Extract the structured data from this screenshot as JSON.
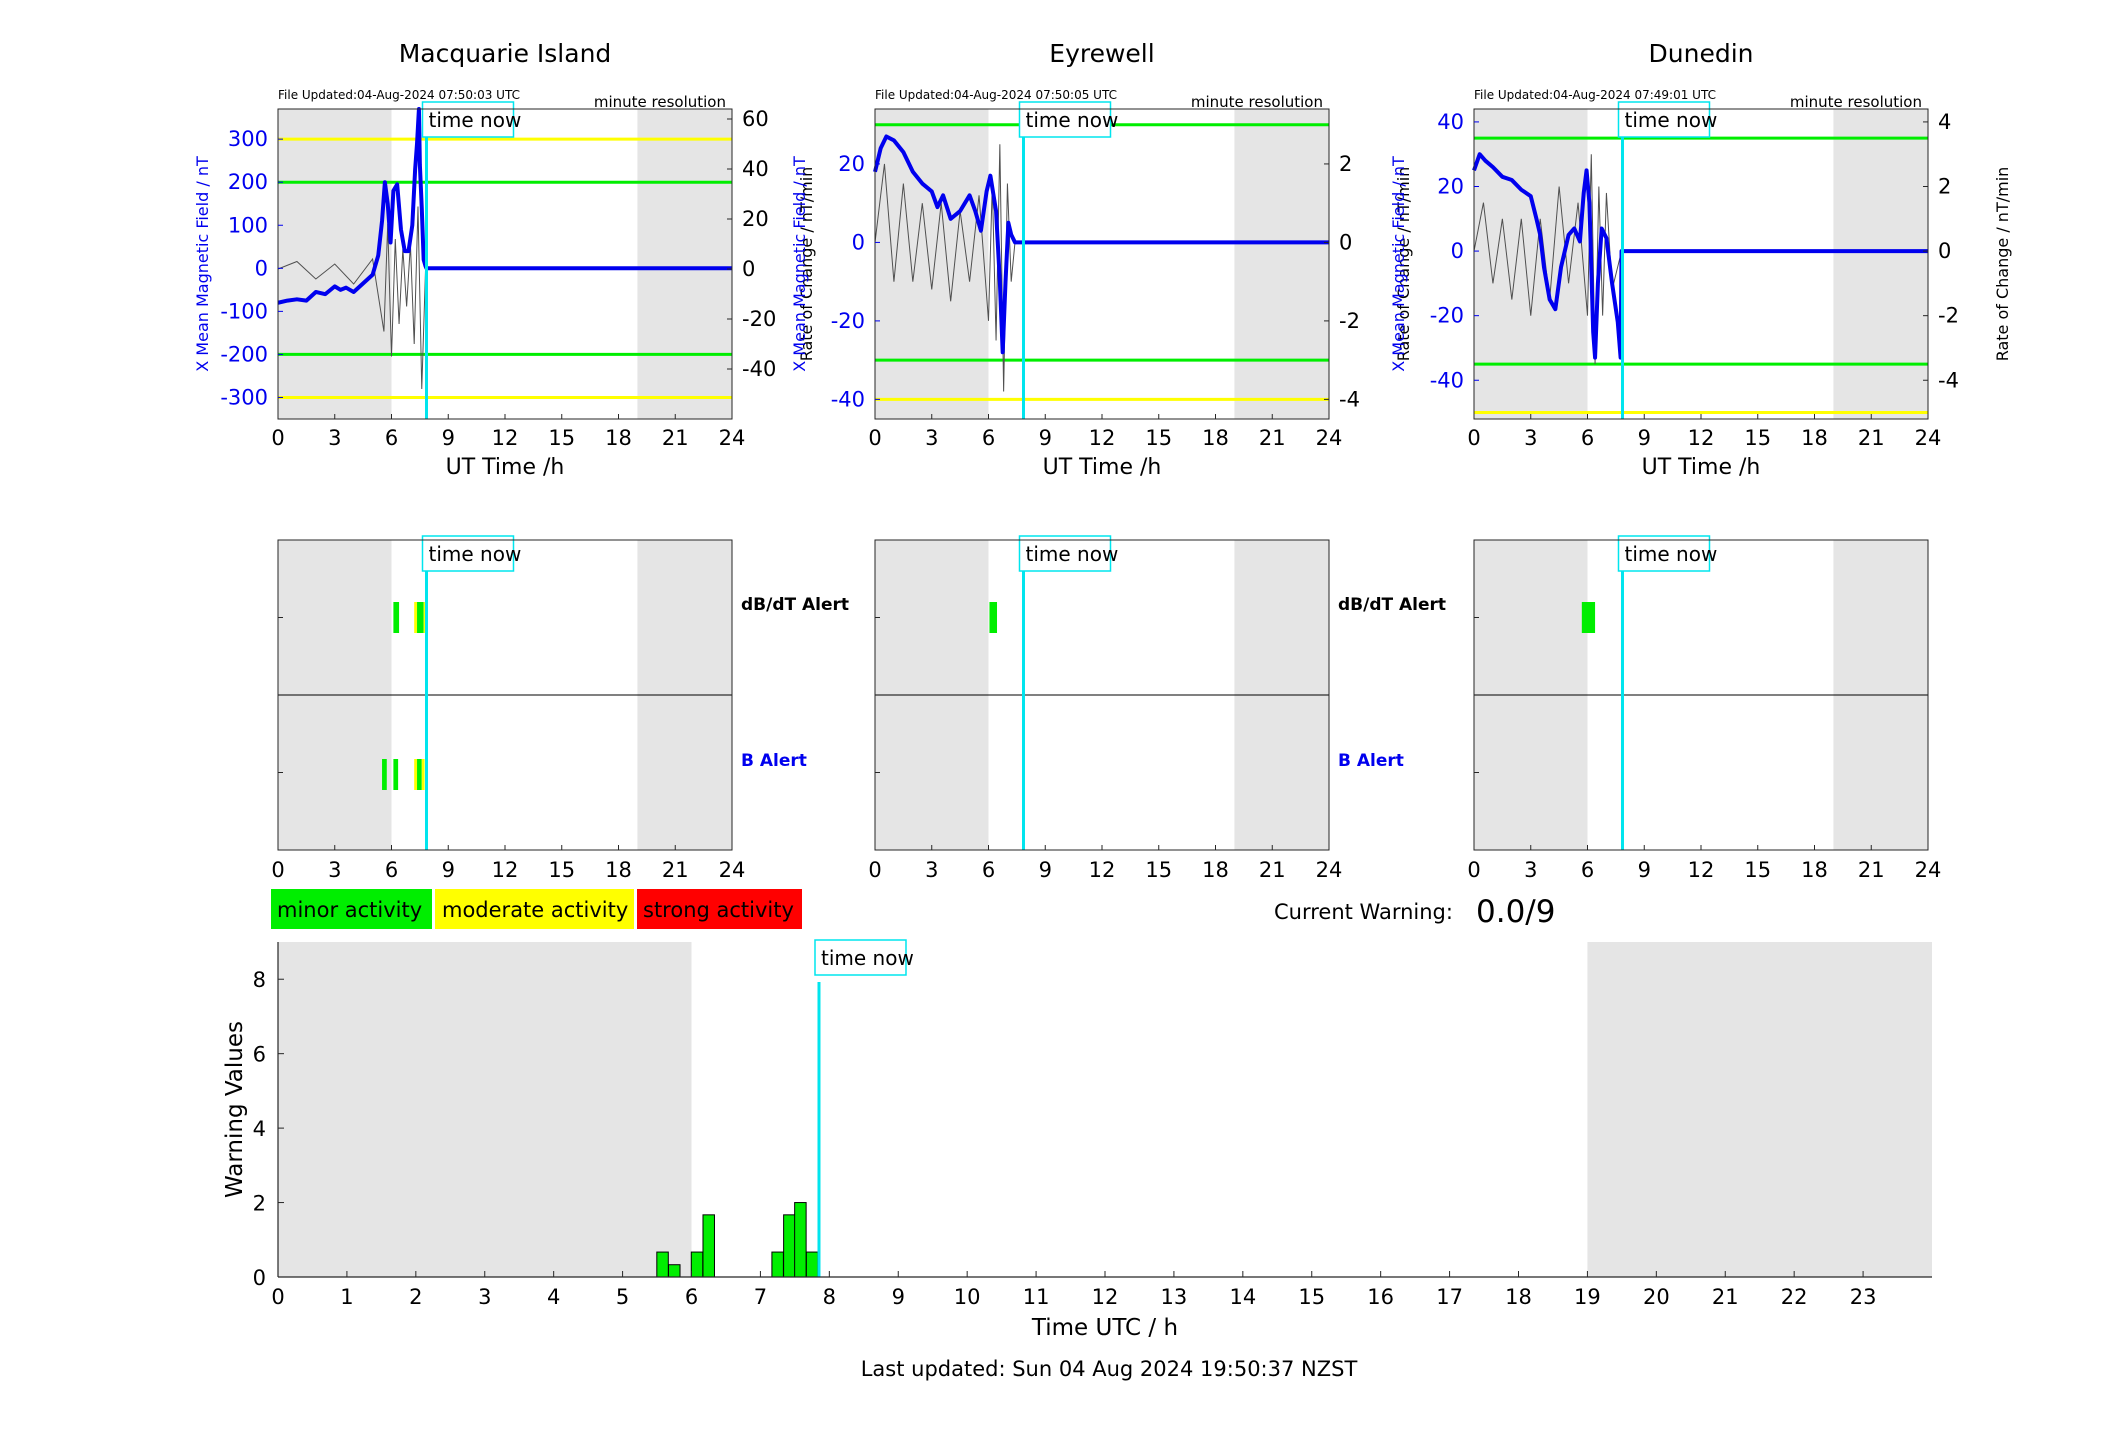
{
  "meta": {
    "now_hour": 7.85,
    "time_now_label": "time now",
    "minute_resolution": "minute resolution",
    "x_ticks_top": [
      0,
      3,
      6,
      9,
      12,
      15,
      18,
      21,
      24
    ],
    "x_label_top": "UT Time /h",
    "left_ylabel": "X Mean Magnetic Field / nT",
    "right_ylabel": "Rate of Change / nT/min",
    "night_shading": [
      [
        0,
        6
      ],
      [
        19,
        24
      ]
    ],
    "colors": {
      "field": "#0000ee",
      "rate": "#505050",
      "minor": "#00ee00",
      "moderate": "#ffff00",
      "strong": "#ff0000",
      "time_now": "#00e5ee",
      "shading": "#e5e5e5",
      "b_alert": "#0000ee"
    }
  },
  "stations": [
    {
      "name": "Macquarie Island",
      "file_updated": "File Updated:04-Aug-2024 07:50:03 UTC",
      "ylim_left": [
        -350,
        370
      ],
      "yticks_left": [
        -300,
        -200,
        -100,
        0,
        100,
        200,
        300
      ],
      "ylim_right": [
        -60,
        64
      ],
      "yticks_right": [
        -40,
        -20,
        0,
        20,
        40,
        60
      ],
      "thresholds": [
        {
          "value": 300,
          "level": "moderate"
        },
        {
          "value": -300,
          "level": "moderate"
        },
        {
          "value": 200,
          "level": "minor"
        },
        {
          "value": -200,
          "level": "minor"
        }
      ],
      "field_series": [
        [
          0,
          -80
        ],
        [
          0.5,
          -75
        ],
        [
          1,
          -72
        ],
        [
          1.5,
          -75
        ],
        [
          2,
          -55
        ],
        [
          2.5,
          -60
        ],
        [
          3,
          -42
        ],
        [
          3.3,
          -50
        ],
        [
          3.6,
          -45
        ],
        [
          4,
          -55
        ],
        [
          4.5,
          -35
        ],
        [
          5,
          -15
        ],
        [
          5.3,
          30
        ],
        [
          5.5,
          110
        ],
        [
          5.65,
          200
        ],
        [
          5.8,
          150
        ],
        [
          5.95,
          60
        ],
        [
          6.1,
          180
        ],
        [
          6.3,
          195
        ],
        [
          6.5,
          90
        ],
        [
          6.7,
          40
        ],
        [
          6.9,
          40
        ],
        [
          7.1,
          100
        ],
        [
          7.25,
          230
        ],
        [
          7.35,
          290
        ],
        [
          7.45,
          370
        ],
        [
          7.5,
          240
        ],
        [
          7.6,
          140
        ],
        [
          7.7,
          20
        ],
        [
          7.8,
          5
        ],
        [
          7.85,
          0
        ],
        [
          24,
          0
        ]
      ],
      "rate_series": [
        [
          0,
          0
        ],
        [
          1,
          3
        ],
        [
          2,
          -4
        ],
        [
          3,
          2
        ],
        [
          4,
          -6
        ],
        [
          5,
          4
        ],
        [
          5.6,
          -25
        ],
        [
          5.8,
          18
        ],
        [
          6,
          -35
        ],
        [
          6.2,
          12
        ],
        [
          6.4,
          -22
        ],
        [
          6.6,
          8
        ],
        [
          6.8,
          -15
        ],
        [
          7,
          10
        ],
        [
          7.2,
          -30
        ],
        [
          7.4,
          25
        ],
        [
          7.6,
          -48
        ],
        [
          7.8,
          0
        ],
        [
          24,
          0
        ]
      ],
      "alerts": {
        "dbdt": [
          {
            "start": 6.1,
            "end": 6.4,
            "level": "minor"
          },
          {
            "start": 7.2,
            "end": 7.35,
            "level": "moderate"
          },
          {
            "start": 7.35,
            "end": 7.7,
            "level": "minor"
          },
          {
            "start": 7.7,
            "end": 7.75,
            "level": "moderate"
          }
        ],
        "b": [
          {
            "start": 5.5,
            "end": 5.75,
            "level": "minor"
          },
          {
            "start": 6.1,
            "end": 6.35,
            "level": "minor"
          },
          {
            "start": 7.2,
            "end": 7.35,
            "level": "moderate"
          },
          {
            "start": 7.35,
            "end": 7.6,
            "level": "minor"
          },
          {
            "start": 7.6,
            "end": 7.75,
            "level": "moderate"
          }
        ]
      }
    },
    {
      "name": "Eyrewell",
      "file_updated": "File Updated:04-Aug-2024 07:50:05 UTC",
      "ylim_left": [
        -45,
        34
      ],
      "yticks_left": [
        -40,
        -20,
        0,
        20
      ],
      "ylim_right": [
        -4.5,
        3.4
      ],
      "yticks_right": [
        -4,
        -2,
        0,
        2
      ],
      "thresholds": [
        {
          "value": 30,
          "level": "minor"
        },
        {
          "value": -30,
          "level": "minor"
        },
        {
          "value": -40,
          "level": "moderate"
        }
      ],
      "field_series": [
        [
          0,
          18
        ],
        [
          0.3,
          24
        ],
        [
          0.6,
          27
        ],
        [
          1,
          26
        ],
        [
          1.5,
          23
        ],
        [
          2,
          18
        ],
        [
          2.5,
          15
        ],
        [
          3,
          13
        ],
        [
          3.3,
          9
        ],
        [
          3.6,
          12
        ],
        [
          4,
          6
        ],
        [
          4.5,
          8
        ],
        [
          5,
          12
        ],
        [
          5.3,
          8
        ],
        [
          5.6,
          3
        ],
        [
          5.9,
          13
        ],
        [
          6.1,
          17
        ],
        [
          6.4,
          8
        ],
        [
          6.6,
          -10
        ],
        [
          6.75,
          -28
        ],
        [
          6.9,
          -10
        ],
        [
          7.05,
          5
        ],
        [
          7.2,
          2
        ],
        [
          7.4,
          0
        ],
        [
          7.85,
          0
        ],
        [
          24,
          0
        ]
      ],
      "rate_series": [
        [
          0,
          0
        ],
        [
          0.5,
          2
        ],
        [
          1,
          -1
        ],
        [
          1.5,
          1.5
        ],
        [
          2,
          -1
        ],
        [
          2.5,
          1
        ],
        [
          3,
          -1.2
        ],
        [
          3.5,
          1
        ],
        [
          4,
          -1.5
        ],
        [
          4.5,
          0.8
        ],
        [
          5,
          -1
        ],
        [
          5.5,
          1.2
        ],
        [
          6,
          -2
        ],
        [
          6.2,
          1.5
        ],
        [
          6.4,
          -2.5
        ],
        [
          6.6,
          2.5
        ],
        [
          6.8,
          -3.8
        ],
        [
          7,
          1.5
        ],
        [
          7.2,
          -1
        ],
        [
          7.4,
          0
        ],
        [
          24,
          0
        ]
      ],
      "alerts": {
        "dbdt": [
          {
            "start": 6.05,
            "end": 6.45,
            "level": "minor"
          }
        ],
        "b": []
      }
    },
    {
      "name": "Dunedin",
      "file_updated": "File Updated:04-Aug-2024 07:49:01 UTC",
      "ylim_left": [
        -52,
        44
      ],
      "yticks_left": [
        -40,
        -20,
        0,
        20,
        40
      ],
      "ylim_right": [
        -5.2,
        4.4
      ],
      "yticks_right": [
        -4,
        -2,
        0,
        2,
        4
      ],
      "thresholds": [
        {
          "value": 35,
          "level": "minor"
        },
        {
          "value": -35,
          "level": "minor"
        },
        {
          "value": -50,
          "level": "moderate"
        }
      ],
      "field_series": [
        [
          0,
          25
        ],
        [
          0.3,
          30
        ],
        [
          0.6,
          28
        ],
        [
          1,
          26
        ],
        [
          1.5,
          23
        ],
        [
          2,
          22
        ],
        [
          2.5,
          19
        ],
        [
          3,
          17
        ],
        [
          3.3,
          10
        ],
        [
          3.5,
          5
        ],
        [
          3.7,
          -5
        ],
        [
          4,
          -15
        ],
        [
          4.3,
          -18
        ],
        [
          4.6,
          -5
        ],
        [
          5,
          5
        ],
        [
          5.3,
          7
        ],
        [
          5.6,
          3
        ],
        [
          5.8,
          18
        ],
        [
          5.95,
          25
        ],
        [
          6.1,
          15
        ],
        [
          6.3,
          -25
        ],
        [
          6.4,
          -33
        ],
        [
          6.55,
          -10
        ],
        [
          6.75,
          7
        ],
        [
          7,
          4
        ],
        [
          7.3,
          -10
        ],
        [
          7.6,
          -22
        ],
        [
          7.75,
          -33
        ],
        [
          7.8,
          0
        ],
        [
          24,
          0
        ]
      ],
      "rate_series": [
        [
          0,
          0
        ],
        [
          0.5,
          1.5
        ],
        [
          1,
          -1
        ],
        [
          1.5,
          1
        ],
        [
          2,
          -1.5
        ],
        [
          2.5,
          1
        ],
        [
          3,
          -2
        ],
        [
          3.5,
          1
        ],
        [
          4,
          -1.5
        ],
        [
          4.5,
          2
        ],
        [
          5,
          -1
        ],
        [
          5.5,
          1.5
        ],
        [
          6,
          -2
        ],
        [
          6.2,
          3
        ],
        [
          6.4,
          -3.5
        ],
        [
          6.6,
          2
        ],
        [
          6.8,
          -2
        ],
        [
          7,
          1.8
        ],
        [
          7.3,
          -1.2
        ],
        [
          7.8,
          0
        ],
        [
          24,
          0
        ]
      ],
      "alerts": {
        "dbdt": [
          {
            "start": 5.7,
            "end": 6.4,
            "level": "minor"
          }
        ],
        "b": []
      }
    }
  ],
  "alert_labels": {
    "dbdt": "dB/dT Alert",
    "b": "B Alert"
  },
  "legend": [
    {
      "label": "minor activity",
      "level": "minor"
    },
    {
      "label": "moderate activity",
      "level": "moderate"
    },
    {
      "label": "strong activity",
      "level": "strong"
    }
  ],
  "current_warning": {
    "label": "Current Warning:",
    "value": "0.0/9"
  },
  "chart_data": {
    "type": "bar",
    "xlabel": "Time UTC / h",
    "ylabel": "Warning Values",
    "xlim": [
      0,
      24
    ],
    "ylim": [
      0,
      9
    ],
    "yticks": [
      0,
      2,
      4,
      6,
      8
    ],
    "xticks": [
      0,
      1,
      2,
      3,
      4,
      5,
      6,
      7,
      8,
      9,
      10,
      11,
      12,
      13,
      14,
      15,
      16,
      17,
      18,
      19,
      20,
      21,
      22,
      23
    ],
    "bar_width_h": 0.1667,
    "bars": [
      {
        "x": 5.58,
        "y": 0.67
      },
      {
        "x": 5.75,
        "y": 0.33
      },
      {
        "x": 6.08,
        "y": 0.67
      },
      {
        "x": 6.25,
        "y": 1.67
      },
      {
        "x": 7.25,
        "y": 0.67
      },
      {
        "x": 7.42,
        "y": 1.67
      },
      {
        "x": 7.58,
        "y": 2.0
      },
      {
        "x": 7.75,
        "y": 0.67
      }
    ],
    "night_shading": [
      [
        0,
        6
      ],
      [
        19,
        24
      ]
    ],
    "time_now": 7.85
  },
  "last_updated": "Last updated: Sun 04 Aug 2024 19:50:37 NZST"
}
